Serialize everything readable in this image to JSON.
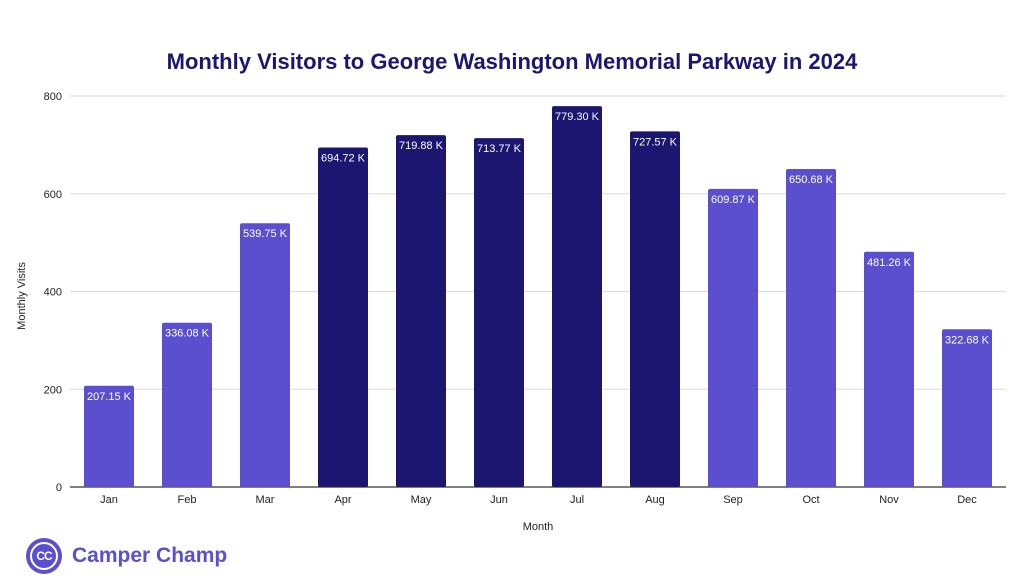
{
  "colors": {
    "title": "#1c1670",
    "dark_bar": "#1c1670",
    "light_bar": "#5b4fcf",
    "grid": "#d9d9d9",
    "brand": "#5b4fcf"
  },
  "brand": {
    "logo_text": "CC",
    "name": "Camper Champ"
  },
  "chart_data": {
    "type": "bar",
    "title": "Monthly Visitors to George Washington Memorial Parkway in 2024",
    "xlabel": "Month",
    "ylabel": "Monthly Visits",
    "ylim": [
      0,
      800
    ],
    "yticks": [
      "0",
      "200",
      "400",
      "600",
      "800"
    ],
    "grid": true,
    "legend": "none",
    "categories": [
      "Jan",
      "Feb",
      "Mar",
      "Apr",
      "May",
      "Jun",
      "Jul",
      "Aug",
      "Sep",
      "Oct",
      "Nov",
      "Dec"
    ],
    "values": [
      207.15,
      336.08,
      539.75,
      694.72,
      719.88,
      713.77,
      779.3,
      727.57,
      609.87,
      650.68,
      481.26,
      322.68
    ],
    "labels": [
      "207.15 K",
      "336.08 K",
      "539.75 K",
      "694.72 K",
      "719.88 K",
      "713.77 K",
      "779.30 K",
      "727.57 K",
      "609.87 K",
      "650.68 K",
      "481.26 K",
      "322.68 K"
    ],
    "highlight": [
      false,
      false,
      false,
      true,
      true,
      true,
      true,
      true,
      false,
      false,
      false,
      false
    ]
  }
}
